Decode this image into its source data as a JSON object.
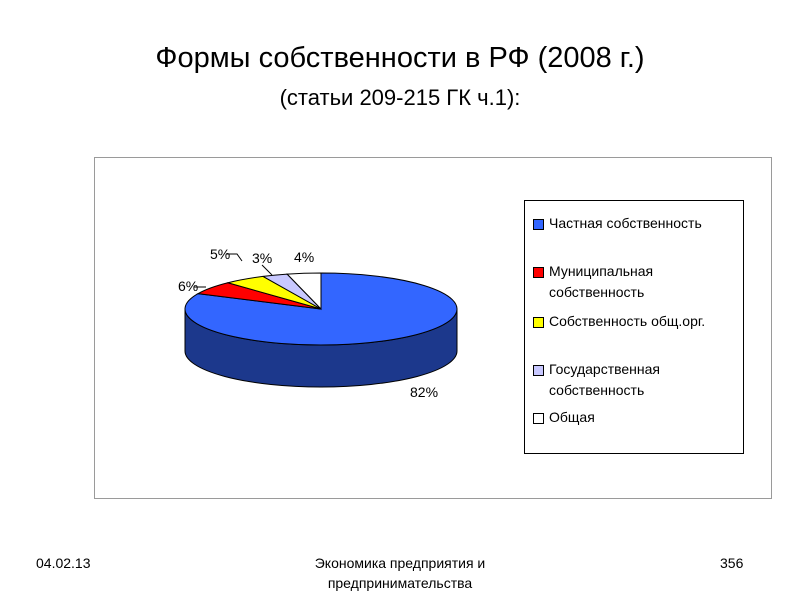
{
  "slide": {
    "title": "Формы собственности в РФ (2008 г.)",
    "subtitle": "(статьи 209-215 ГК ч.1):"
  },
  "chart_data": {
    "type": "pie",
    "style": "3d",
    "categories": [
      "Частная собственность",
      "Муниципальная собственность",
      "Собственность общ.орг.",
      "Государственная собственность",
      "Общая"
    ],
    "values": [
      82,
      6,
      5,
      3,
      4
    ],
    "data_labels": [
      "82%",
      "6%",
      "5%",
      "3%",
      "4%"
    ],
    "colors": [
      "#3366ff",
      "#ff0000",
      "#ffff00",
      "#c8c8ff",
      "#ffffff"
    ],
    "legend_position": "right"
  },
  "legend": {
    "items": [
      {
        "label": "Частная собственность",
        "color": "#3366ff"
      },
      {
        "label": "Муниципальная собственность",
        "color": "#ff0000"
      },
      {
        "label": "Собственность общ.орг.",
        "color": "#ffff00"
      },
      {
        "label": "Государственная собственность",
        "color": "#c8c8ff"
      },
      {
        "label": "Общая",
        "color": "#ffffff"
      }
    ]
  },
  "footer": {
    "date": "04.02.13",
    "course": "Экономика предприятия и предпринимательства",
    "page": "356"
  }
}
